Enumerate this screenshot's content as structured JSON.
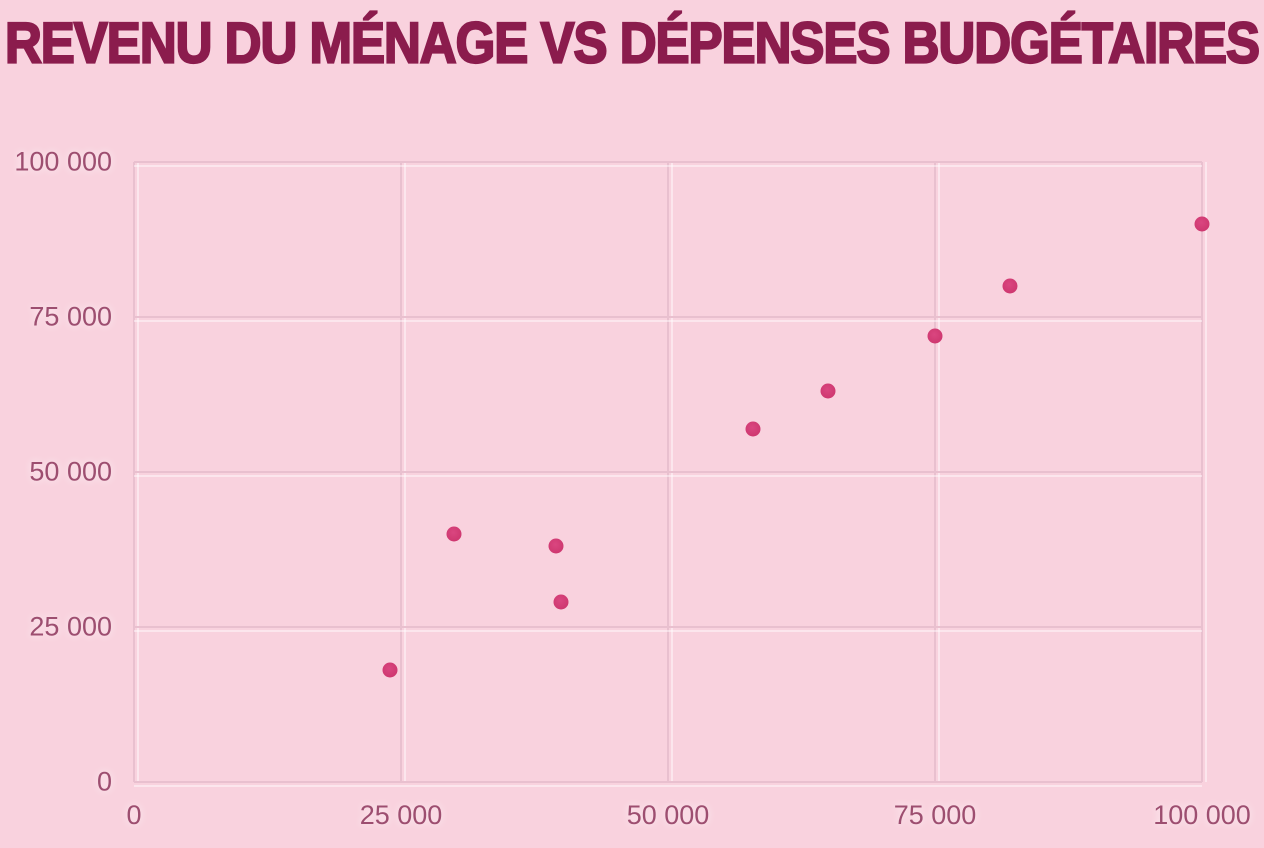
{
  "colors": {
    "background": "#f9d2de",
    "title": "#8b1c4d",
    "tick": "#9d4e70",
    "gridline": "#e9c0cf",
    "point": "#ce376f"
  },
  "chart_data": {
    "type": "scatter",
    "title": "REVENU DU MÉNAGE VS DÉPENSES BUDGÉTAIRES",
    "xlabel": "",
    "ylabel": "",
    "xlim": [
      0,
      100000
    ],
    "ylim": [
      0,
      100000
    ],
    "grid": true,
    "legend": "none",
    "x_ticks": [
      0,
      25000,
      50000,
      75000,
      100000
    ],
    "y_ticks": [
      0,
      25000,
      50000,
      75000,
      100000
    ],
    "x_tick_labels": [
      "0",
      "25 000",
      "50 000",
      "75 000",
      "100 000"
    ],
    "y_tick_labels": [
      "0",
      "25 000",
      "50 000",
      "75 000",
      "100 000"
    ],
    "points": [
      {
        "x": 24000,
        "y": 18000
      },
      {
        "x": 30000,
        "y": 40000
      },
      {
        "x": 39500,
        "y": 38000
      },
      {
        "x": 40000,
        "y": 29000
      },
      {
        "x": 58000,
        "y": 57000
      },
      {
        "x": 65000,
        "y": 63000
      },
      {
        "x": 75000,
        "y": 72000
      },
      {
        "x": 82000,
        "y": 80000
      },
      {
        "x": 100000,
        "y": 90000
      }
    ]
  }
}
